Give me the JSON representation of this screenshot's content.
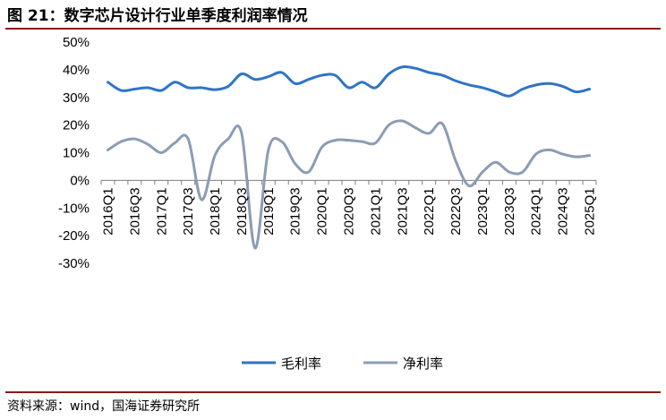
{
  "title": "图 21：数字芯片设计行业单季度利润率情况",
  "source": "资料来源：wind，国海证券研究所",
  "chart_data": {
    "type": "line",
    "title": "",
    "xlabel": "",
    "ylabel": "",
    "ylim": [
      -30,
      50
    ],
    "y_ticks": [
      "50%",
      "40%",
      "30%",
      "20%",
      "10%",
      "0%",
      "-10%",
      "-20%",
      "-30%"
    ],
    "x_tick_labels": [
      "2016Q1",
      "2016Q3",
      "2017Q1",
      "2017Q3",
      "2018Q1",
      "2018Q3",
      "2019Q1",
      "2019Q3",
      "2020Q1",
      "2020Q3",
      "2021Q1",
      "2021Q3",
      "2022Q1",
      "2022Q3",
      "2023Q1",
      "2023Q3",
      "2024Q1",
      "2024Q3",
      "2025Q1"
    ],
    "x": [
      "2016Q1",
      "2016Q2",
      "2016Q3",
      "2016Q4",
      "2017Q1",
      "2017Q2",
      "2017Q3",
      "2017Q4",
      "2018Q1",
      "2018Q2",
      "2018Q3",
      "2018Q4",
      "2019Q1",
      "2019Q2",
      "2019Q3",
      "2019Q4",
      "2020Q1",
      "2020Q2",
      "2020Q3",
      "2020Q4",
      "2021Q1",
      "2021Q2",
      "2021Q3",
      "2021Q4",
      "2022Q1",
      "2022Q2",
      "2022Q3",
      "2022Q4",
      "2023Q1",
      "2023Q2",
      "2023Q3",
      "2023Q4",
      "2024Q1",
      "2024Q2",
      "2024Q3",
      "2024Q4",
      "2025Q1"
    ],
    "legend_position": "bottom",
    "grid": false,
    "series": [
      {
        "name": "毛利率",
        "color": "#2e75c6",
        "values": [
          35.5,
          32.5,
          33.0,
          33.5,
          32.5,
          35.5,
          33.5,
          33.5,
          32.8,
          34.0,
          38.5,
          36.5,
          37.5,
          39.0,
          35.0,
          36.5,
          38.0,
          38.0,
          33.5,
          35.5,
          33.5,
          38.5,
          41.0,
          40.5,
          39.0,
          38.0,
          36.0,
          34.5,
          33.5,
          32.0,
          30.5,
          33.0,
          34.5,
          35.0,
          34.0,
          32.0,
          33.0
        ]
      },
      {
        "name": "净利率",
        "color": "#8c9cb4",
        "values": [
          11.0,
          14.0,
          15.0,
          13.0,
          10.0,
          13.5,
          15.0,
          -7.0,
          9.0,
          15.0,
          17.0,
          -24.5,
          11.0,
          14.0,
          6.0,
          3.0,
          12.0,
          14.5,
          14.5,
          14.0,
          13.5,
          20.0,
          21.5,
          19.0,
          17.0,
          20.5,
          7.0,
          -2.0,
          3.0,
          6.5,
          3.0,
          3.0,
          9.5,
          11.0,
          9.5,
          8.5,
          9.0
        ]
      }
    ]
  }
}
